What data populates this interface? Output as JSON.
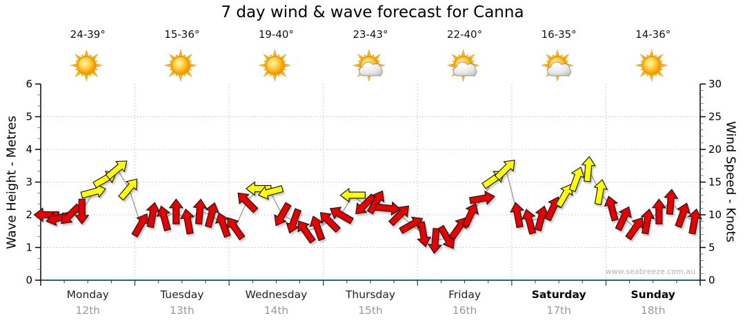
{
  "title": "7 day wind & wave forecast for Canna",
  "watermark": "www.seabreeze.com.au",
  "colors": {
    "arrow_low": "#e60000",
    "arrow_high": "#ffff00",
    "arrow_outline": "#1b1b1b",
    "trend_line": "#a0a0a0",
    "grid": "#bdbdbd",
    "bottom_axis": "#2d5f83",
    "date_text": "#999999",
    "day_text": "#222222",
    "weekend_text": "#000000"
  },
  "y_left": {
    "label": "Wave Height - Metres",
    "ticks": [
      0,
      1,
      2,
      3,
      4,
      5,
      6
    ],
    "range": [
      0,
      6
    ]
  },
  "y_right": {
    "label": "Wind Speed - Knots",
    "ticks": [
      0,
      5,
      10,
      15,
      20,
      25,
      30
    ],
    "range": [
      0,
      30
    ]
  },
  "days": [
    {
      "name": "Monday",
      "date": "12th",
      "temp": "24-39°",
      "icon": "sunny",
      "weekend": false
    },
    {
      "name": "Tuesday",
      "date": "13th",
      "temp": "15-36°",
      "icon": "sunny",
      "weekend": false
    },
    {
      "name": "Wednesday",
      "date": "14th",
      "temp": "19-40°",
      "icon": "sunny",
      "weekend": false
    },
    {
      "name": "Thursday",
      "date": "15th",
      "temp": "23-43°",
      "icon": "partly-cloudy",
      "weekend": false
    },
    {
      "name": "Friday",
      "date": "16th",
      "temp": "22-40°",
      "icon": "partly-cloudy",
      "weekend": false
    },
    {
      "name": "Saturday",
      "date": "17th",
      "temp": "16-35°",
      "icon": "partly-cloudy",
      "weekend": true
    },
    {
      "name": "Sunday",
      "date": "18th",
      "temp": "14-36°",
      "icon": "sunny",
      "weekend": true
    }
  ],
  "chart_data": {
    "type": "wind_arrow_timeseries",
    "title": "7 day wind & wave forecast for Canna",
    "ylabel_left": "Wave Height - Metres",
    "ylabel_right": "Wind Speed - Knots",
    "ylim_left": [
      0,
      6
    ],
    "ylim_right": [
      0,
      30
    ],
    "grid": "dotted horizontal at 5,10,15,20,25 knots; dotted vertical at day boundaries",
    "points_per_day": 8,
    "speed_unit": "knots",
    "arrow_color_rule": "yellow when wind >= 13 knots else red",
    "point_format": [
      "knots",
      "direction_deg_screen_0_is_up",
      "color r=red y=yellow"
    ],
    "points": [
      [
        10,
        270,
        "r"
      ],
      [
        9.5,
        255,
        "r"
      ],
      [
        10,
        225,
        "r"
      ],
      [
        10.5,
        180,
        "r"
      ],
      [
        13.5,
        75,
        "y"
      ],
      [
        15.5,
        60,
        "y"
      ],
      [
        17,
        50,
        "y"
      ],
      [
        14,
        40,
        "y"
      ],
      [
        8.5,
        30,
        "r"
      ],
      [
        10,
        10,
        "r"
      ],
      [
        9.5,
        345,
        "r"
      ],
      [
        10.5,
        0,
        "r"
      ],
      [
        9,
        350,
        "r"
      ],
      [
        10.5,
        5,
        "r"
      ],
      [
        10,
        15,
        "r"
      ],
      [
        8.5,
        340,
        "r"
      ],
      [
        8,
        325,
        "r"
      ],
      [
        12,
        315,
        "r"
      ],
      [
        14,
        270,
        "y"
      ],
      [
        13.5,
        255,
        "y"
      ],
      [
        10,
        210,
        "r"
      ],
      [
        9,
        200,
        "r"
      ],
      [
        7.5,
        325,
        "r"
      ],
      [
        8,
        340,
        "r"
      ],
      [
        9,
        315,
        "r"
      ],
      [
        10,
        300,
        "r"
      ],
      [
        13,
        270,
        "y"
      ],
      [
        11.5,
        225,
        "r"
      ],
      [
        12,
        30,
        "r"
      ],
      [
        11,
        95,
        "r"
      ],
      [
        10,
        45,
        "r"
      ],
      [
        8.5,
        60,
        "r"
      ],
      [
        7,
        170,
        "r"
      ],
      [
        6,
        185,
        "r"
      ],
      [
        6.5,
        150,
        "r"
      ],
      [
        8,
        35,
        "r"
      ],
      [
        10,
        25,
        "r"
      ],
      [
        12.5,
        80,
        "r"
      ],
      [
        15.5,
        55,
        "y"
      ],
      [
        17,
        45,
        "y"
      ],
      [
        10,
        350,
        "r"
      ],
      [
        9,
        345,
        "r"
      ],
      [
        9.5,
        15,
        "r"
      ],
      [
        11,
        25,
        "r"
      ],
      [
        13,
        30,
        "y"
      ],
      [
        15.5,
        20,
        "y"
      ],
      [
        17,
        5,
        "y"
      ],
      [
        13.5,
        10,
        "y"
      ],
      [
        11,
        345,
        "r"
      ],
      [
        9.5,
        25,
        "r"
      ],
      [
        8,
        35,
        "r"
      ],
      [
        9,
        10,
        "r"
      ],
      [
        10.5,
        0,
        "r"
      ],
      [
        12,
        5,
        "r"
      ],
      [
        10,
        20,
        "r"
      ],
      [
        9,
        10,
        "r"
      ]
    ]
  }
}
